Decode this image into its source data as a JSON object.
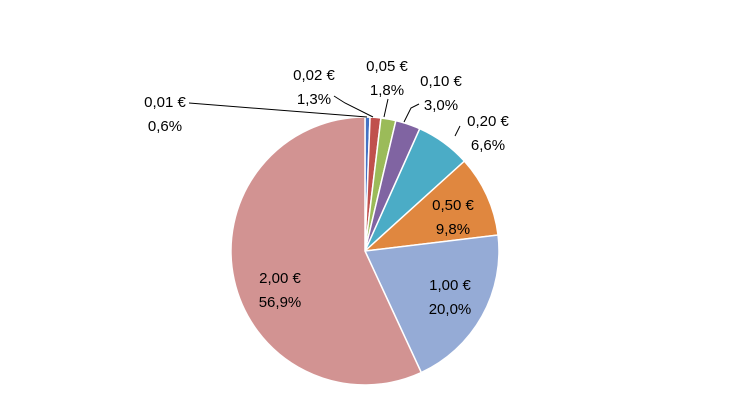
{
  "chart_data": {
    "type": "pie",
    "slices": [
      {
        "label": "0,01 €",
        "percent_label": "0,6%",
        "value": 0.6,
        "color": "#4472c4"
      },
      {
        "label": "0,02 €",
        "percent_label": "1,3%",
        "value": 1.3,
        "color": "#c0504d"
      },
      {
        "label": "0,05 €",
        "percent_label": "1,8%",
        "value": 1.8,
        "color": "#9bbb59"
      },
      {
        "label": "0,10 €",
        "percent_label": "3,0%",
        "value": 3.0,
        "color": "#8064a2"
      },
      {
        "label": "0,20 €",
        "percent_label": "6,6%",
        "value": 6.6,
        "color": "#4bacc6"
      },
      {
        "label": "0,50 €",
        "percent_label": "9,8%",
        "value": 9.8,
        "color": "#e0873f"
      },
      {
        "label": "1,00 €",
        "percent_label": "20,0%",
        "value": 20.0,
        "color": "#95abd6"
      },
      {
        "label": "2,00 €",
        "percent_label": "56,9%",
        "value": 56.9,
        "color": "#d29392"
      }
    ],
    "start_angle_deg": 0,
    "direction": "clockwise",
    "legend": "none"
  }
}
